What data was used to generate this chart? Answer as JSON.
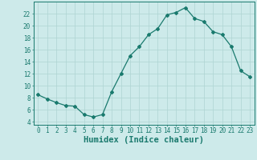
{
  "x": [
    0,
    1,
    2,
    3,
    4,
    5,
    6,
    7,
    8,
    9,
    10,
    11,
    12,
    13,
    14,
    15,
    16,
    17,
    18,
    19,
    20,
    21,
    22,
    23
  ],
  "y": [
    8.5,
    7.8,
    7.2,
    6.7,
    6.6,
    5.2,
    4.8,
    5.2,
    9.0,
    12.0,
    15.0,
    16.5,
    18.5,
    19.5,
    21.8,
    22.2,
    23.0,
    21.2,
    20.7,
    19.0,
    18.5,
    16.5,
    12.5,
    11.5
  ],
  "xlabel": "Humidex (Indice chaleur)",
  "xlim": [
    -0.5,
    23.5
  ],
  "ylim": [
    3.5,
    24.0
  ],
  "yticks": [
    4,
    6,
    8,
    10,
    12,
    14,
    16,
    18,
    20,
    22
  ],
  "xticks": [
    0,
    1,
    2,
    3,
    4,
    5,
    6,
    7,
    8,
    9,
    10,
    11,
    12,
    13,
    14,
    15,
    16,
    17,
    18,
    19,
    20,
    21,
    22,
    23
  ],
  "line_color": "#1a7a6e",
  "marker": "D",
  "marker_size": 2.0,
  "bg_color": "#cdeaea",
  "grid_color": "#aed4d2",
  "tick_label_color": "#1a7a6e",
  "xlabel_color": "#1a7a6e",
  "xlabel_fontsize": 7.5,
  "tick_fontsize": 5.5
}
